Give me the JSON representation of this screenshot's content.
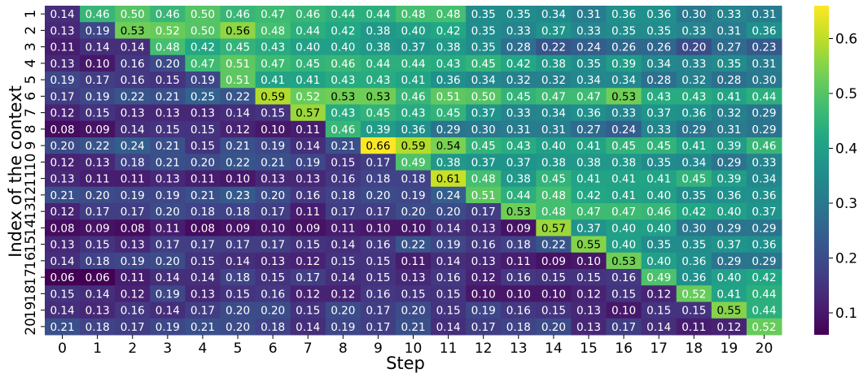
{
  "chart_data": {
    "type": "heatmap",
    "title": "",
    "xlabel": "Step",
    "ylabel": "Index of the context",
    "x_ticks": [
      "0",
      "1",
      "2",
      "3",
      "4",
      "5",
      "6",
      "7",
      "8",
      "9",
      "10",
      "11",
      "12",
      "13",
      "14",
      "15",
      "16",
      "17",
      "18",
      "19",
      "20"
    ],
    "y_ticks": [
      "1",
      "2",
      "3",
      "4",
      "5",
      "6",
      "7",
      "8",
      "9",
      "10",
      "11",
      "12",
      "13",
      "14",
      "15",
      "16",
      "17",
      "18",
      "19",
      "20"
    ],
    "colormap": "viridis",
    "vmin": 0.06,
    "vmax": 0.66,
    "colorbar_ticks": [
      0.1,
      0.2,
      0.3,
      0.4,
      0.5,
      0.6
    ],
    "colorbar_tick_labels": [
      "0.1",
      "0.2",
      "0.3",
      "0.4",
      "0.5",
      "0.6"
    ],
    "values": [
      [
        0.14,
        0.46,
        0.5,
        0.46,
        0.5,
        0.46,
        0.47,
        0.46,
        0.44,
        0.44,
        0.48,
        0.48,
        0.35,
        0.35,
        0.34,
        0.31,
        0.36,
        0.36,
        0.3,
        0.33,
        0.31
      ],
      [
        0.13,
        0.19,
        0.53,
        0.52,
        0.5,
        0.56,
        0.48,
        0.44,
        0.42,
        0.38,
        0.4,
        0.42,
        0.35,
        0.33,
        0.37,
        0.33,
        0.35,
        0.35,
        0.33,
        0.31,
        0.36
      ],
      [
        0.11,
        0.14,
        0.14,
        0.48,
        0.42,
        0.45,
        0.43,
        0.4,
        0.4,
        0.38,
        0.37,
        0.38,
        0.35,
        0.28,
        0.22,
        0.24,
        0.26,
        0.26,
        0.2,
        0.27,
        0.23
      ],
      [
        0.13,
        0.1,
        0.16,
        0.2,
        0.47,
        0.51,
        0.47,
        0.45,
        0.46,
        0.44,
        0.44,
        0.43,
        0.45,
        0.42,
        0.38,
        0.35,
        0.39,
        0.34,
        0.33,
        0.35,
        0.31
      ],
      [
        0.19,
        0.17,
        0.16,
        0.15,
        0.19,
        0.51,
        0.41,
        0.41,
        0.43,
        0.43,
        0.41,
        0.36,
        0.34,
        0.32,
        0.32,
        0.34,
        0.34,
        0.28,
        0.32,
        0.28,
        0.3
      ],
      [
        0.17,
        0.19,
        0.22,
        0.21,
        0.25,
        0.22,
        0.59,
        0.52,
        0.53,
        0.53,
        0.46,
        0.51,
        0.5,
        0.45,
        0.47,
        0.47,
        0.53,
        0.43,
        0.43,
        0.41,
        0.44
      ],
      [
        0.12,
        0.15,
        0.13,
        0.13,
        0.13,
        0.14,
        0.15,
        0.57,
        0.43,
        0.45,
        0.43,
        0.45,
        0.37,
        0.33,
        0.34,
        0.36,
        0.33,
        0.37,
        0.36,
        0.32,
        0.29
      ],
      [
        0.08,
        0.09,
        0.14,
        0.15,
        0.15,
        0.12,
        0.1,
        0.11,
        0.46,
        0.39,
        0.36,
        0.29,
        0.3,
        0.31,
        0.31,
        0.27,
        0.24,
        0.33,
        0.29,
        0.31,
        0.29
      ],
      [
        0.2,
        0.22,
        0.24,
        0.21,
        0.15,
        0.21,
        0.19,
        0.14,
        0.21,
        0.66,
        0.59,
        0.54,
        0.45,
        0.43,
        0.4,
        0.41,
        0.45,
        0.45,
        0.41,
        0.39,
        0.46
      ],
      [
        0.12,
        0.13,
        0.18,
        0.21,
        0.2,
        0.22,
        0.21,
        0.19,
        0.15,
        0.17,
        0.49,
        0.38,
        0.37,
        0.37,
        0.38,
        0.38,
        0.38,
        0.35,
        0.34,
        0.29,
        0.33
      ],
      [
        0.13,
        0.11,
        0.11,
        0.13,
        0.11,
        0.1,
        0.13,
        0.13,
        0.16,
        0.18,
        0.18,
        0.61,
        0.48,
        0.38,
        0.45,
        0.41,
        0.41,
        0.41,
        0.45,
        0.39,
        0.34
      ],
      [
        0.21,
        0.2,
        0.19,
        0.19,
        0.21,
        0.23,
        0.2,
        0.16,
        0.18,
        0.2,
        0.19,
        0.24,
        0.51,
        0.44,
        0.48,
        0.42,
        0.41,
        0.4,
        0.35,
        0.36,
        0.36
      ],
      [
        0.12,
        0.17,
        0.17,
        0.2,
        0.18,
        0.18,
        0.17,
        0.11,
        0.17,
        0.17,
        0.2,
        0.2,
        0.17,
        0.53,
        0.48,
        0.47,
        0.47,
        0.46,
        0.42,
        0.4,
        0.37
      ],
      [
        0.08,
        0.09,
        0.08,
        0.11,
        0.08,
        0.09,
        0.1,
        0.09,
        0.11,
        0.1,
        0.1,
        0.14,
        0.13,
        0.09,
        0.57,
        0.37,
        0.4,
        0.4,
        0.3,
        0.29,
        0.29
      ],
      [
        0.13,
        0.15,
        0.13,
        0.17,
        0.17,
        0.17,
        0.17,
        0.15,
        0.14,
        0.16,
        0.22,
        0.19,
        0.16,
        0.18,
        0.22,
        0.55,
        0.4,
        0.35,
        0.35,
        0.37,
        0.36
      ],
      [
        0.14,
        0.18,
        0.19,
        0.2,
        0.15,
        0.14,
        0.13,
        0.12,
        0.15,
        0.15,
        0.11,
        0.14,
        0.13,
        0.11,
        0.09,
        0.1,
        0.53,
        0.4,
        0.36,
        0.29,
        0.29
      ],
      [
        0.06,
        0.06,
        0.11,
        0.14,
        0.14,
        0.18,
        0.15,
        0.17,
        0.14,
        0.15,
        0.13,
        0.16,
        0.12,
        0.16,
        0.15,
        0.15,
        0.16,
        0.49,
        0.36,
        0.4,
        0.42
      ],
      [
        0.15,
        0.14,
        0.12,
        0.19,
        0.13,
        0.15,
        0.16,
        0.12,
        0.12,
        0.16,
        0.15,
        0.15,
        0.1,
        0.1,
        0.1,
        0.12,
        0.15,
        0.12,
        0.52,
        0.41,
        0.44
      ],
      [
        0.14,
        0.13,
        0.16,
        0.14,
        0.17,
        0.2,
        0.2,
        0.15,
        0.2,
        0.17,
        0.2,
        0.15,
        0.19,
        0.16,
        0.15,
        0.13,
        0.1,
        0.15,
        0.15,
        0.55,
        0.44
      ],
      [
        0.21,
        0.18,
        0.17,
        0.19,
        0.21,
        0.2,
        0.18,
        0.14,
        0.19,
        0.17,
        0.21,
        0.14,
        0.17,
        0.18,
        0.2,
        0.13,
        0.17,
        0.14,
        0.11,
        0.12,
        0.52
      ]
    ]
  }
}
